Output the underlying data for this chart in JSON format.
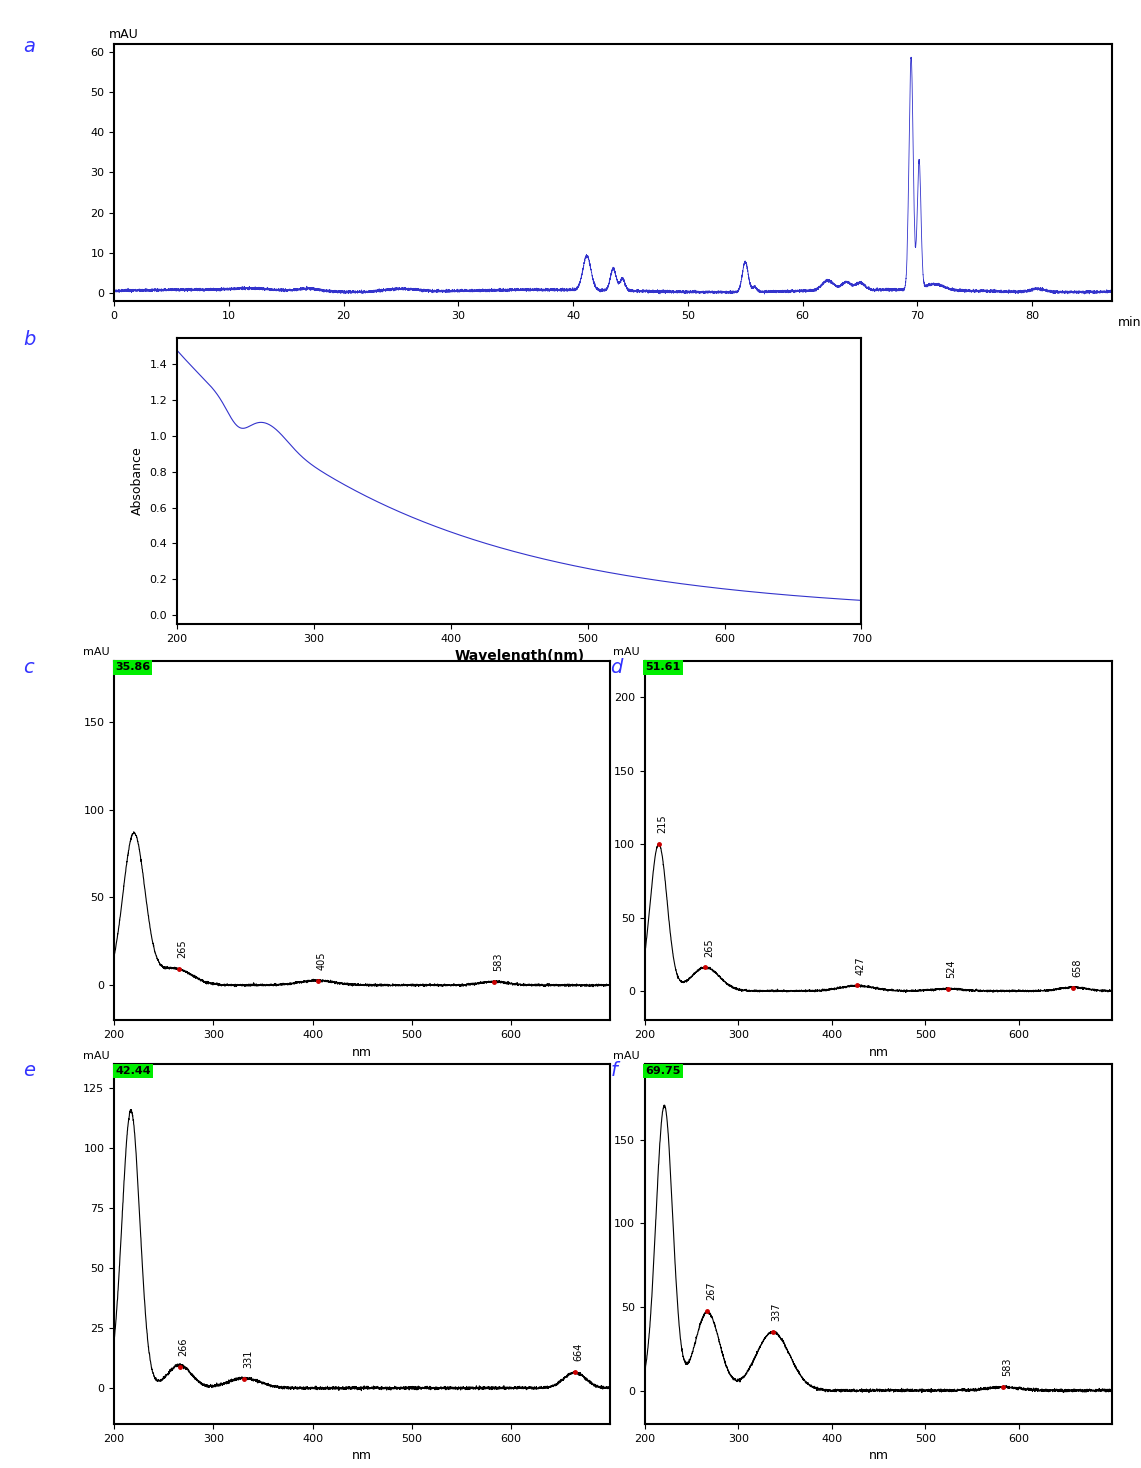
{
  "fig_bg": "#ffffff",
  "line_color_blue": "#3333cc",
  "line_color_black": "#000000",
  "green_color": "#00ee00",
  "panel_a": {
    "xlabel": "min",
    "xlim": [
      0,
      87
    ],
    "ylim": [
      -2,
      62
    ],
    "yticks": [
      0,
      10,
      20,
      30,
      40,
      50,
      60
    ],
    "xticks": [
      0,
      10,
      20,
      30,
      40,
      50,
      60,
      70,
      80
    ],
    "label": "a",
    "label_color": "#3333ff"
  },
  "panel_b": {
    "xlabel": "Wavelength(nm)",
    "ylabel": "Absobance",
    "xlim": [
      200,
      700
    ],
    "ylim": [
      -0.05,
      1.55
    ],
    "yticks": [
      0.0,
      0.2,
      0.4,
      0.6,
      0.8,
      1.0,
      1.2,
      1.4
    ],
    "xticks": [
      200,
      300,
      400,
      500,
      600,
      700
    ],
    "label": "b",
    "label_color": "#3333ff"
  },
  "panel_c": {
    "xlabel": "nm",
    "xlim": [
      200,
      700
    ],
    "ylim": [
      -20,
      185
    ],
    "yticks": [
      0,
      50,
      100,
      150
    ],
    "xticks": [
      200,
      300,
      400,
      500,
      600
    ],
    "label": "c",
    "label_color": "#3333ff",
    "green_label": "35.86",
    "peak_annotations": [
      {
        "label": "265",
        "x": 265,
        "ref_y": 5
      },
      {
        "label": "405",
        "x": 405,
        "ref_y": 2
      },
      {
        "label": "583",
        "x": 583,
        "ref_y": 2
      }
    ]
  },
  "panel_d": {
    "xlabel": "nm",
    "xlim": [
      200,
      700
    ],
    "ylim": [
      -20,
      225
    ],
    "yticks": [
      0,
      50,
      100,
      150,
      200
    ],
    "xticks": [
      200,
      300,
      400,
      500,
      600
    ],
    "label": "d",
    "label_color": "#3333ff",
    "green_label": "51.61",
    "peak_annotations": [
      {
        "label": "215",
        "x": 215,
        "ref_y": 100
      },
      {
        "label": "265",
        "x": 265,
        "ref_y": 15
      },
      {
        "label": "427",
        "x": 427,
        "ref_y": 2
      },
      {
        "label": "524",
        "x": 524,
        "ref_y": 1
      },
      {
        "label": "658",
        "x": 658,
        "ref_y": 2
      }
    ]
  },
  "panel_e": {
    "xlabel": "nm",
    "xlim": [
      200,
      700
    ],
    "ylim": [
      -15,
      135
    ],
    "yticks": [
      0,
      25,
      50,
      75,
      100,
      125
    ],
    "xticks": [
      200,
      300,
      400,
      500,
      600
    ],
    "label": "e",
    "label_color": "#3333ff",
    "green_label": "42.44",
    "peak_annotations": [
      {
        "label": "266",
        "x": 266,
        "ref_y": 12
      },
      {
        "label": "331",
        "x": 331,
        "ref_y": 5
      },
      {
        "label": "664",
        "x": 664,
        "ref_y": 8
      }
    ]
  },
  "panel_f": {
    "xlabel": "nm",
    "xlim": [
      200,
      700
    ],
    "ylim": [
      -20,
      195
    ],
    "yticks": [
      0,
      50,
      100,
      150
    ],
    "xticks": [
      200,
      300,
      400,
      500,
      600
    ],
    "label": "f",
    "label_color": "#3333ff",
    "green_label": "69.75",
    "peak_annotations": [
      {
        "label": "267",
        "x": 267,
        "ref_y": 50
      },
      {
        "label": "337",
        "x": 337,
        "ref_y": 35
      },
      {
        "label": "583",
        "x": 583,
        "ref_y": 2
      }
    ]
  }
}
